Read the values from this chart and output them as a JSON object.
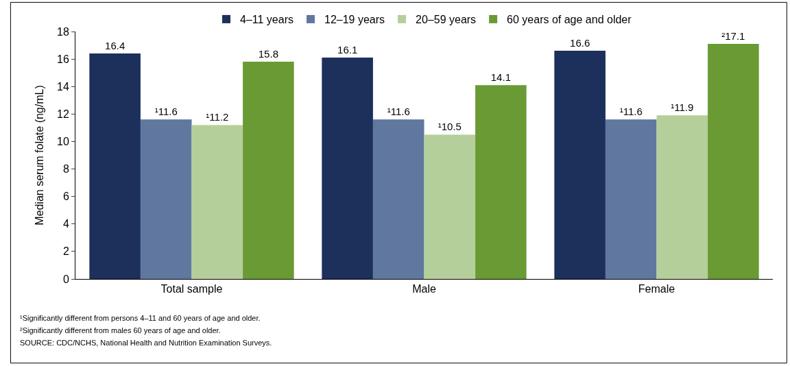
{
  "chart_data": {
    "type": "bar",
    "ylabel": "Median serum folate (ng/mL)",
    "categories": [
      "Total sample",
      "Male",
      "Female"
    ],
    "series": [
      {
        "name": "4–11 years",
        "color": "#1d2f5b",
        "values": [
          16.4,
          16.1,
          16.6
        ],
        "value_labels": [
          "16.4",
          "16.1",
          "16.6"
        ]
      },
      {
        "name": "12–19 years",
        "color": "#60789f",
        "values": [
          11.6,
          11.6,
          11.6
        ],
        "value_labels": [
          "¹11.6",
          "¹11.6",
          "¹11.6"
        ]
      },
      {
        "name": "20–59 years",
        "color": "#b5cf9a",
        "values": [
          11.2,
          10.5,
          11.9
        ],
        "value_labels": [
          "¹11.2",
          "¹10.5",
          "¹11.9"
        ]
      },
      {
        "name": "60 years of age and older",
        "color": "#6a9a34",
        "values": [
          15.8,
          14.1,
          17.1
        ],
        "value_labels": [
          "15.8",
          "14.1",
          "²17.1"
        ]
      }
    ],
    "ylim": [
      0,
      18
    ],
    "yticks": [
      0,
      2,
      4,
      6,
      8,
      10,
      12,
      14,
      16,
      18
    ],
    "grid": false,
    "legend": "top",
    "annotations": [
      "¹Significantly different from persons 4–11 and 60 years of age and older.",
      "²Significantly different from males 60 years of age and older.",
      "SOURCE: CDC/NCHS, National Health and Nutrition Examination Surveys."
    ]
  }
}
